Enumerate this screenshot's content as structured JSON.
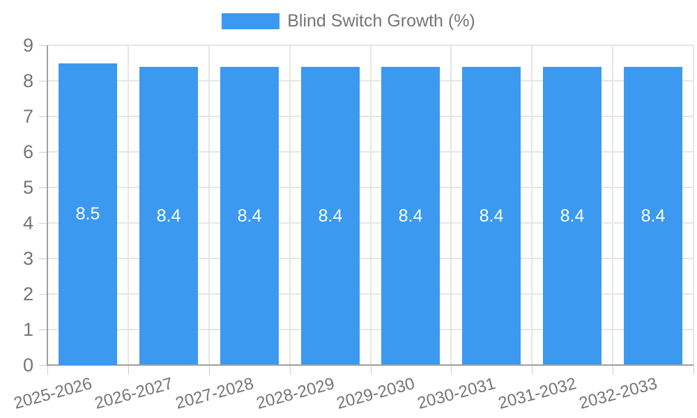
{
  "chart_data": {
    "type": "bar",
    "title": "Blind Switch Growth (%)",
    "categories": [
      "2025-2026",
      "2026-2027",
      "2027-2028",
      "2028-2029",
      "2029-2030",
      "2030-2031",
      "2031-2032",
      "2032-2033"
    ],
    "values": [
      8.5,
      8.4,
      8.4,
      8.4,
      8.4,
      8.4,
      8.4,
      8.4
    ],
    "bar_labels": [
      "8.5",
      "8.4",
      "8.4",
      "8.4",
      "8.4",
      "8.4",
      "8.4",
      "8.4"
    ],
    "xlabel": "",
    "ylabel": "",
    "ylim": [
      0,
      9
    ],
    "yticks": [
      0,
      1,
      2,
      3,
      4,
      5,
      6,
      7,
      8,
      9
    ],
    "grid": true,
    "legend_position": "top-center",
    "x_label_rotation_deg": -15,
    "colors": {
      "bar": "#3B99F0",
      "bar_label": "#FFFFFF",
      "axis_text": "#757575",
      "legend_text": "#757575",
      "grid_line": "#E6E6E6",
      "axis_line": "#9E9E9E",
      "tick": "#CCCCCC",
      "background": "#FFFFFF"
    }
  }
}
